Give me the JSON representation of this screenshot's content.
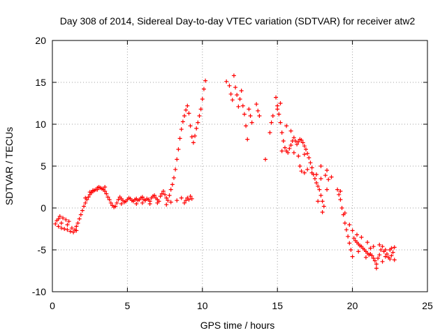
{
  "chart_data": {
    "type": "scatter",
    "title": "Day 308 of 2014, Sidereal Day-to-day VTEC variation (SDTVAR) for receiver atw2",
    "xlabel": "GPS time / hours",
    "ylabel": "SDTVAR / TECUs",
    "xlim": [
      0,
      25
    ],
    "ylim": [
      -10,
      20
    ],
    "xticks": [
      0,
      5,
      10,
      15,
      20,
      25
    ],
    "xtick_labels": [
      "0",
      "5",
      "10",
      "15",
      "20",
      "25"
    ],
    "yticks": [
      -10,
      -5,
      0,
      5,
      10,
      15,
      20
    ],
    "ytick_labels": [
      "-10",
      "-5",
      "0",
      "5",
      "10",
      "15",
      "20"
    ],
    "grid": true,
    "marker": "+",
    "color": "#ff0000",
    "series": [
      {
        "name": "SDTVAR",
        "points": [
          [
            0.2,
            -1.9
          ],
          [
            0.3,
            -1.5
          ],
          [
            0.4,
            -2.2
          ],
          [
            0.5,
            -1.0
          ],
          [
            0.6,
            -1.8
          ],
          [
            0.7,
            -1.2
          ],
          [
            0.8,
            -2.5
          ],
          [
            0.9,
            -1.4
          ],
          [
            1.0,
            -2.0
          ],
          [
            1.1,
            -1.6
          ],
          [
            1.2,
            -2.8
          ],
          [
            1.3,
            -2.4
          ],
          [
            1.4,
            -2.9
          ],
          [
            1.5,
            -2.6
          ],
          [
            1.6,
            -2.2
          ],
          [
            1.7,
            -1.8
          ],
          [
            1.8,
            -1.3
          ],
          [
            1.9,
            -0.8
          ],
          [
            2.0,
            -0.3
          ],
          [
            2.1,
            0.2
          ],
          [
            2.2,
            0.6
          ],
          [
            2.3,
            1.0
          ],
          [
            2.4,
            1.3
          ],
          [
            2.5,
            1.6
          ],
          [
            2.6,
            1.8
          ],
          [
            2.7,
            2.0
          ],
          [
            2.8,
            2.1
          ],
          [
            2.9,
            2.2
          ],
          [
            3.0,
            2.4
          ],
          [
            3.1,
            2.5
          ],
          [
            3.2,
            2.4
          ],
          [
            3.3,
            2.3
          ],
          [
            3.4,
            2.2
          ],
          [
            3.5,
            2.0
          ],
          [
            3.6,
            1.7
          ],
          [
            3.7,
            1.3
          ],
          [
            3.8,
            1.0
          ],
          [
            3.9,
            0.6
          ],
          [
            4.0,
            0.3
          ],
          [
            4.1,
            0.1
          ],
          [
            4.2,
            0.2
          ],
          [
            4.3,
            0.6
          ],
          [
            4.4,
            1.0
          ],
          [
            4.5,
            1.3
          ],
          [
            4.6,
            1.1
          ],
          [
            4.7,
            0.9
          ],
          [
            4.8,
            0.7
          ],
          [
            4.9,
            0.8
          ],
          [
            5.0,
            1.0
          ],
          [
            5.1,
            1.2
          ],
          [
            5.2,
            1.1
          ],
          [
            5.3,
            0.9
          ],
          [
            5.4,
            0.8
          ],
          [
            5.5,
            1.0
          ],
          [
            5.6,
            1.1
          ],
          [
            5.7,
            0.9
          ],
          [
            5.8,
            1.0
          ],
          [
            5.9,
            1.2
          ],
          [
            6.0,
            1.3
          ],
          [
            6.1,
            1.0
          ],
          [
            6.2,
            0.9
          ],
          [
            6.3,
            1.1
          ],
          [
            6.4,
            1.0
          ],
          [
            6.5,
            0.8
          ],
          [
            6.6,
            1.2
          ],
          [
            6.7,
            1.4
          ],
          [
            6.8,
            1.5
          ],
          [
            6.9,
            1.2
          ],
          [
            7.0,
            1.0
          ],
          [
            7.1,
            0.8
          ],
          [
            7.2,
            1.4
          ],
          [
            7.3,
            1.7
          ],
          [
            7.4,
            2.0
          ],
          [
            7.5,
            1.6
          ],
          [
            7.6,
            1.2
          ],
          [
            7.7,
            0.9
          ],
          [
            7.8,
            1.5
          ],
          [
            7.9,
            2.2
          ],
          [
            8.0,
            2.8
          ],
          [
            8.1,
            3.6
          ],
          [
            8.2,
            4.6
          ],
          [
            8.3,
            5.8
          ],
          [
            8.4,
            7.0
          ],
          [
            8.5,
            8.3
          ],
          [
            8.6,
            9.4
          ],
          [
            8.7,
            10.3
          ],
          [
            8.8,
            11.0
          ],
          [
            8.9,
            11.7
          ],
          [
            9.0,
            12.2
          ],
          [
            9.1,
            11.3
          ],
          [
            9.2,
            9.8
          ],
          [
            9.3,
            8.5
          ],
          [
            9.4,
            7.8
          ],
          [
            9.5,
            8.6
          ],
          [
            9.6,
            9.5
          ],
          [
            9.7,
            10.2
          ],
          [
            9.8,
            11.0
          ],
          [
            9.9,
            11.8
          ],
          [
            10.0,
            13.0
          ],
          [
            10.1,
            14.2
          ],
          [
            10.2,
            15.2
          ],
          [
            8.8,
            0.6
          ],
          [
            8.9,
            0.9
          ],
          [
            9.0,
            1.2
          ],
          [
            9.1,
            1.0
          ],
          [
            9.2,
            1.4
          ],
          [
            9.3,
            1.1
          ],
          [
            7.6,
            0.4
          ],
          [
            7.9,
            0.7
          ],
          [
            8.3,
            0.9
          ],
          [
            8.6,
            1.2
          ],
          [
            3.5,
            2.5
          ],
          [
            3.0,
            2.2
          ],
          [
            2.7,
            2.1
          ],
          [
            6.5,
            0.5
          ],
          [
            7.0,
            0.6
          ],
          [
            1.0,
            -2.6
          ],
          [
            0.6,
            -2.4
          ],
          [
            0.4,
            -1.3
          ],
          [
            1.6,
            -2.7
          ],
          [
            5.6,
            0.5
          ],
          [
            6.0,
            0.6
          ],
          [
            4.6,
            0.5
          ],
          [
            2.2,
            1.2
          ],
          [
            2.5,
            1.9
          ],
          [
            11.6,
            15.1
          ],
          [
            11.8,
            14.6
          ],
          [
            11.9,
            13.6
          ],
          [
            12.0,
            12.9
          ],
          [
            12.1,
            15.8
          ],
          [
            12.2,
            14.4
          ],
          [
            12.3,
            13.5
          ],
          [
            12.4,
            12.1
          ],
          [
            12.5,
            13.0
          ],
          [
            12.6,
            14.0
          ],
          [
            12.7,
            12.2
          ],
          [
            12.8,
            11.2
          ],
          [
            12.9,
            9.8
          ],
          [
            13.0,
            8.2
          ],
          [
            13.1,
            11.8
          ],
          [
            13.2,
            11.0
          ],
          [
            13.3,
            10.2
          ],
          [
            13.6,
            12.4
          ],
          [
            13.7,
            11.6
          ],
          [
            13.8,
            11.0
          ],
          [
            14.2,
            5.8
          ],
          [
            14.5,
            9.0
          ],
          [
            14.6,
            10.2
          ],
          [
            14.7,
            11.0
          ],
          [
            14.9,
            13.2
          ],
          [
            15.0,
            12.2
          ],
          [
            15.1,
            11.2
          ],
          [
            15.2,
            10.2
          ],
          [
            15.3,
            9.0
          ],
          [
            15.4,
            8.0
          ],
          [
            15.5,
            7.2
          ],
          [
            15.6,
            6.8
          ],
          [
            15.7,
            6.6
          ],
          [
            15.8,
            7.1
          ],
          [
            15.9,
            7.5
          ],
          [
            16.0,
            8.0
          ],
          [
            16.1,
            8.4
          ],
          [
            16.2,
            8.0
          ],
          [
            16.3,
            7.6
          ],
          [
            16.4,
            7.9
          ],
          [
            16.5,
            8.2
          ],
          [
            16.6,
            8.1
          ],
          [
            16.7,
            7.8
          ],
          [
            16.8,
            7.4
          ],
          [
            16.9,
            7.0
          ],
          [
            17.0,
            6.5
          ],
          [
            17.1,
            6.0
          ],
          [
            17.2,
            5.4
          ],
          [
            17.3,
            4.8
          ],
          [
            17.4,
            4.0
          ],
          [
            17.5,
            3.5
          ],
          [
            17.6,
            3.0
          ],
          [
            17.7,
            2.6
          ],
          [
            17.8,
            2.2
          ],
          [
            17.9,
            1.5
          ],
          [
            18.0,
            0.8
          ],
          [
            18.1,
            0.2
          ],
          [
            16.5,
            5.0
          ],
          [
            16.6,
            4.4
          ],
          [
            16.8,
            4.2
          ],
          [
            17.0,
            4.6
          ],
          [
            17.3,
            4.2
          ],
          [
            17.6,
            4.0
          ],
          [
            17.9,
            3.5
          ],
          [
            18.2,
            3.9
          ],
          [
            18.4,
            3.4
          ],
          [
            18.6,
            3.7
          ],
          [
            18.0,
            -0.5
          ],
          [
            18.3,
            2.2
          ],
          [
            17.7,
            0.8
          ],
          [
            15.2,
            12.5
          ],
          [
            15.0,
            11.8
          ],
          [
            15.6,
            9.8
          ],
          [
            15.9,
            9.2
          ],
          [
            16.1,
            6.6
          ],
          [
            17.9,
            5.0
          ],
          [
            18.3,
            4.5
          ],
          [
            16.4,
            6.2
          ],
          [
            16.8,
            6.4
          ],
          [
            15.3,
            6.8
          ],
          [
            19.0,
            2.2
          ],
          [
            19.1,
            1.6
          ],
          [
            19.2,
            1.0
          ],
          [
            19.3,
            0.0
          ],
          [
            19.4,
            -0.8
          ],
          [
            19.5,
            -1.8
          ],
          [
            19.6,
            -2.6
          ],
          [
            19.7,
            -3.4
          ],
          [
            19.8,
            -4.2
          ],
          [
            19.9,
            -5.0
          ],
          [
            20.0,
            -5.8
          ],
          [
            20.1,
            -3.6
          ],
          [
            20.2,
            -3.9
          ],
          [
            20.3,
            -4.1
          ],
          [
            20.4,
            -4.3
          ],
          [
            20.5,
            -4.5
          ],
          [
            20.6,
            -4.6
          ],
          [
            20.7,
            -4.8
          ],
          [
            20.8,
            -5.0
          ],
          [
            20.9,
            -5.2
          ],
          [
            21.0,
            -5.4
          ],
          [
            21.1,
            -5.6
          ],
          [
            21.2,
            -5.5
          ],
          [
            21.3,
            -5.7
          ],
          [
            21.4,
            -6.0
          ],
          [
            21.5,
            -6.3
          ],
          [
            21.6,
            -6.7
          ],
          [
            21.7,
            -6.0
          ],
          [
            21.8,
            -5.6
          ],
          [
            21.9,
            -5.0
          ],
          [
            22.0,
            -4.6
          ],
          [
            22.1,
            -5.2
          ],
          [
            22.2,
            -5.8
          ],
          [
            22.3,
            -5.5
          ],
          [
            22.4,
            -5.9
          ],
          [
            22.5,
            -6.1
          ],
          [
            22.6,
            -5.7
          ],
          [
            22.7,
            -5.3
          ],
          [
            22.8,
            -6.2
          ],
          [
            19.8,
            -2.0
          ],
          [
            20.0,
            -2.7
          ],
          [
            20.3,
            -3.2
          ],
          [
            20.6,
            -3.5
          ],
          [
            21.0,
            -4.1
          ],
          [
            21.4,
            -4.6
          ],
          [
            21.8,
            -4.4
          ],
          [
            22.2,
            -5.0
          ],
          [
            22.6,
            -4.8
          ],
          [
            19.5,
            -0.6
          ],
          [
            20.9,
            -5.9
          ],
          [
            21.6,
            -7.2
          ],
          [
            22.0,
            -6.4
          ],
          [
            22.5,
            -5.0
          ],
          [
            21.2,
            -4.8
          ],
          [
            19.2,
            2.0
          ],
          [
            20.4,
            -5.2
          ],
          [
            22.8,
            -4.7
          ]
        ]
      }
    ]
  }
}
